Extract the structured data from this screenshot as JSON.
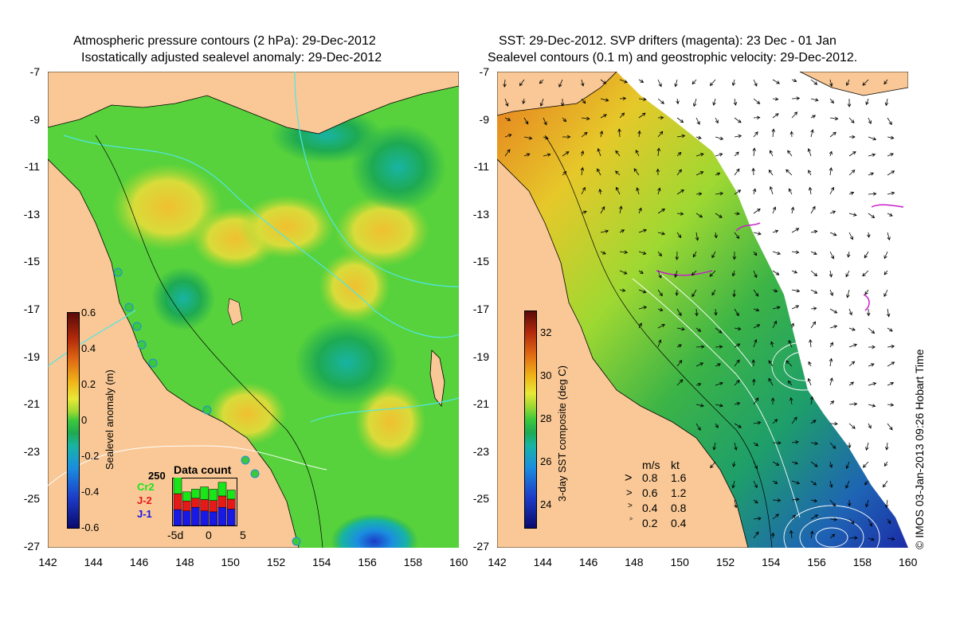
{
  "left_panel": {
    "title_line1": "Atmospheric pressure contours (2 hPa): 29-Dec-2012",
    "title_line2": "Isostatically adjusted sealevel anomaly: 29-Dec-2012",
    "colorbar": {
      "label": "Sealevel anomaly (m)",
      "ticks": [
        "0.6",
        "0.4",
        "0.2",
        "0",
        "-0.2",
        "-0.4",
        "-0.6"
      ]
    },
    "data_count": {
      "title": "Data count",
      "max_label": "250",
      "satellites": [
        {
          "name": "Cr2",
          "color": "#19e619"
        },
        {
          "name": "J-2",
          "color": "#e61919"
        },
        {
          "name": "J-1",
          "color": "#1919e6"
        }
      ],
      "x_ticks": [
        "-5d",
        "0",
        "5"
      ],
      "bars": [
        {
          "j1": 0.35,
          "j2": 0.35,
          "cr2": 0.38
        },
        {
          "j1": 0.32,
          "j2": 0.22,
          "cr2": 0.2
        },
        {
          "j1": 0.4,
          "j2": 0.2,
          "cr2": 0.2
        },
        {
          "j1": 0.32,
          "j2": 0.25,
          "cr2": 0.28
        },
        {
          "j1": 0.3,
          "j2": 0.25,
          "cr2": 0.25
        },
        {
          "j1": 0.4,
          "j2": 0.25,
          "cr2": 0.3
        },
        {
          "j1": 0.36,
          "j2": 0.22,
          "cr2": 0.2
        }
      ]
    }
  },
  "right_panel": {
    "title_line1": "SST: 29-Dec-2012. SVP drifters (magenta): 23 Dec - 01 Jan",
    "title_line2": "Sealevel contours (0.1 m) and geostrophic velocity: 29-Dec-2012.",
    "colorbar": {
      "label": "3-day SST composite (deg C)",
      "ticks": [
        "32",
        "30",
        "28",
        "26",
        "24"
      ]
    },
    "velocity_legend": {
      "header_ms": "m/s",
      "header_kt": "kt",
      "rows": [
        {
          "ms": "0.8",
          "kt": "1.6"
        },
        {
          "ms": "0.6",
          "kt": "1.2"
        },
        {
          "ms": "0.4",
          "kt": "0.8"
        },
        {
          "ms": "0.2",
          "kt": "0.4"
        }
      ]
    },
    "credit": "© IMOS 03-Jan-2013 09:26 Hobart Time"
  },
  "axes": {
    "y_ticks": [
      "-7",
      "-9",
      "-11",
      "-13",
      "-15",
      "-17",
      "-19",
      "-21",
      "-23",
      "-25",
      "-27"
    ],
    "x_ticks": [
      "142",
      "144",
      "146",
      "148",
      "150",
      "152",
      "154",
      "156",
      "158",
      "160"
    ]
  },
  "colors": {
    "land": "#f9c896",
    "sla_base": "#57d23c",
    "sla_high": "#e6d23a",
    "sla_low": "#1eaf5a",
    "sst_warm": "#e6b42a",
    "sst_mid": "#3cb446",
    "sst_cool": "#1e64b4",
    "pressure_contour": "#50e6e6",
    "drifter": "#c81ec8"
  }
}
